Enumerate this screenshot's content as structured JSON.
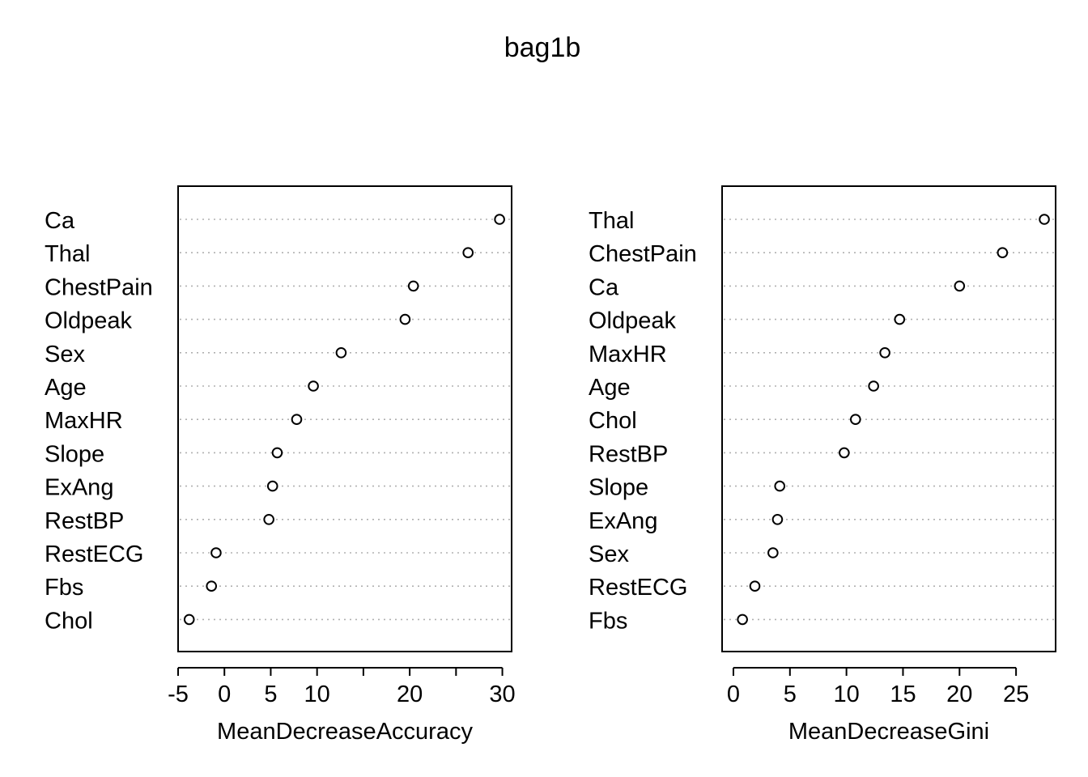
{
  "chart_data": {
    "title": "bag1b",
    "panels": [
      {
        "type": "scatter",
        "xlabel": "MeanDecreaseAccuracy",
        "xlim": [
          -5,
          31
        ],
        "xticks": [
          -5,
          0,
          5,
          10,
          20,
          30
        ],
        "xtick_marks": [
          -5,
          0,
          5,
          10,
          15,
          20,
          25,
          30
        ],
        "categories": [
          "Ca",
          "Thal",
          "ChestPain",
          "Oldpeak",
          "Sex",
          "Age",
          "MaxHR",
          "Slope",
          "ExAng",
          "RestBP",
          "RestECG",
          "Fbs",
          "Chol"
        ],
        "values": [
          29.7,
          26.3,
          20.4,
          19.5,
          12.6,
          9.6,
          7.8,
          5.7,
          5.2,
          4.8,
          -0.9,
          -1.4,
          -3.8
        ],
        "grid": true
      },
      {
        "type": "scatter",
        "xlabel": "MeanDecreaseGini",
        "xlim": [
          -1,
          28.5
        ],
        "xticks": [
          0,
          5,
          10,
          15,
          20,
          25
        ],
        "xtick_marks": [
          0,
          5,
          10,
          15,
          20,
          25
        ],
        "categories": [
          "Thal",
          "ChestPain",
          "Ca",
          "Oldpeak",
          "MaxHR",
          "Age",
          "Chol",
          "RestBP",
          "Slope",
          "ExAng",
          "Sex",
          "RestECG",
          "Fbs"
        ],
        "values": [
          27.5,
          23.8,
          20.0,
          14.7,
          13.4,
          12.4,
          10.8,
          9.8,
          4.1,
          3.9,
          3.5,
          1.9,
          0.8
        ],
        "grid": true
      }
    ]
  }
}
